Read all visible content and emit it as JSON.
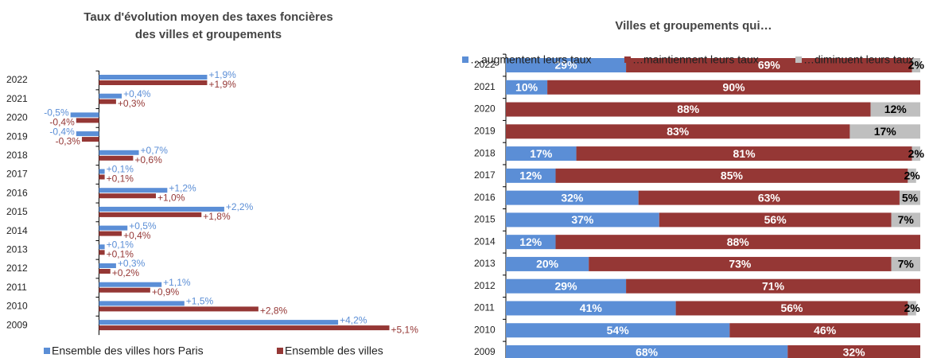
{
  "chart_data": [
    {
      "type": "grouped-hbar",
      "title": "Taux d'évolution moyen des taxes foncières",
      "subtitle": "des villes et groupements",
      "categories": [
        "2022",
        "2021",
        "2020",
        "2019",
        "2018",
        "2017",
        "2016",
        "2015",
        "2014",
        "2013",
        "2012",
        "2011",
        "2010",
        "2009"
      ],
      "xlim": [
        -0.9,
        5.4
      ],
      "legend": "bottom",
      "series": [
        {
          "name": "Ensemble des villes hors Paris",
          "color": "#5b8ed6",
          "values": [
            1.9,
            0.4,
            -0.5,
            -0.4,
            0.7,
            0.1,
            1.2,
            2.2,
            0.5,
            0.1,
            0.3,
            1.1,
            1.5,
            4.2
          ],
          "value_labels": [
            "+1,9%",
            "+0,4%",
            "-0,5%",
            "-0,4%",
            "+0,7%",
            "+0,1%",
            "+1,2%",
            "+2,2%",
            "+0,5%",
            "+0,1%",
            "+0,3%",
            "+1,1%",
            "+1,5%",
            "+4,2%"
          ]
        },
        {
          "name": "Ensemble des villes",
          "color": "#953735",
          "values": [
            1.9,
            0.3,
            -0.4,
            -0.3,
            0.6,
            0.1,
            1.0,
            1.8,
            0.4,
            0.1,
            0.2,
            0.9,
            2.8,
            5.1
          ],
          "value_labels": [
            "+1,9%",
            "+0,3%",
            "-0,4%",
            "-0,3%",
            "+0,6%",
            "+0,1%",
            "+1,0%",
            "+1,8%",
            "+0,4%",
            "+0,1%",
            "+0,2%",
            "+0,9%",
            "+2,8%",
            "+5,1%"
          ]
        }
      ]
    },
    {
      "type": "stacked-hbar",
      "title": "Villes et groupements qui…",
      "categories": [
        "2022",
        "2021",
        "2020",
        "2019",
        "2018",
        "2017",
        "2016",
        "2015",
        "2014",
        "2013",
        "2012",
        "2011",
        "2010",
        "2009"
      ],
      "xlim": [
        0,
        100
      ],
      "legend": "top",
      "series": [
        {
          "name": "…augmentent leurs taux",
          "color": "#5b8ed6",
          "label_color": "#ffffff",
          "values": [
            29,
            10,
            null,
            null,
            17,
            12,
            32,
            37,
            12,
            20,
            29,
            41,
            54,
            68
          ],
          "value_labels": [
            "29%",
            "10%",
            null,
            null,
            "17%",
            "12%",
            "32%",
            "37%",
            "12%",
            "20%",
            "29%",
            "41%",
            "54%",
            "68%"
          ]
        },
        {
          "name": "…maintiennent leurs taux",
          "color": "#953735",
          "label_color": "#ffffff",
          "values": [
            69,
            90,
            88,
            83,
            81,
            85,
            63,
            56,
            88,
            73,
            71,
            56,
            46,
            32
          ],
          "value_labels": [
            "69%",
            "90%",
            "88%",
            "83%",
            "81%",
            "85%",
            "63%",
            "56%",
            "88%",
            "73%",
            "71%",
            "56%",
            "46%",
            "32%"
          ]
        },
        {
          "name": "…diminuent leurs taux",
          "color": "#bfbfbf",
          "label_color": "#000000",
          "values": [
            2,
            null,
            12,
            17,
            2,
            2,
            5,
            7,
            null,
            7,
            null,
            2,
            null,
            null
          ],
          "value_labels": [
            "2%",
            null,
            "12%",
            "17%",
            "2%",
            "2%",
            "5%",
            "7%",
            null,
            "7%",
            null,
            "2%",
            null,
            null
          ]
        }
      ]
    }
  ]
}
